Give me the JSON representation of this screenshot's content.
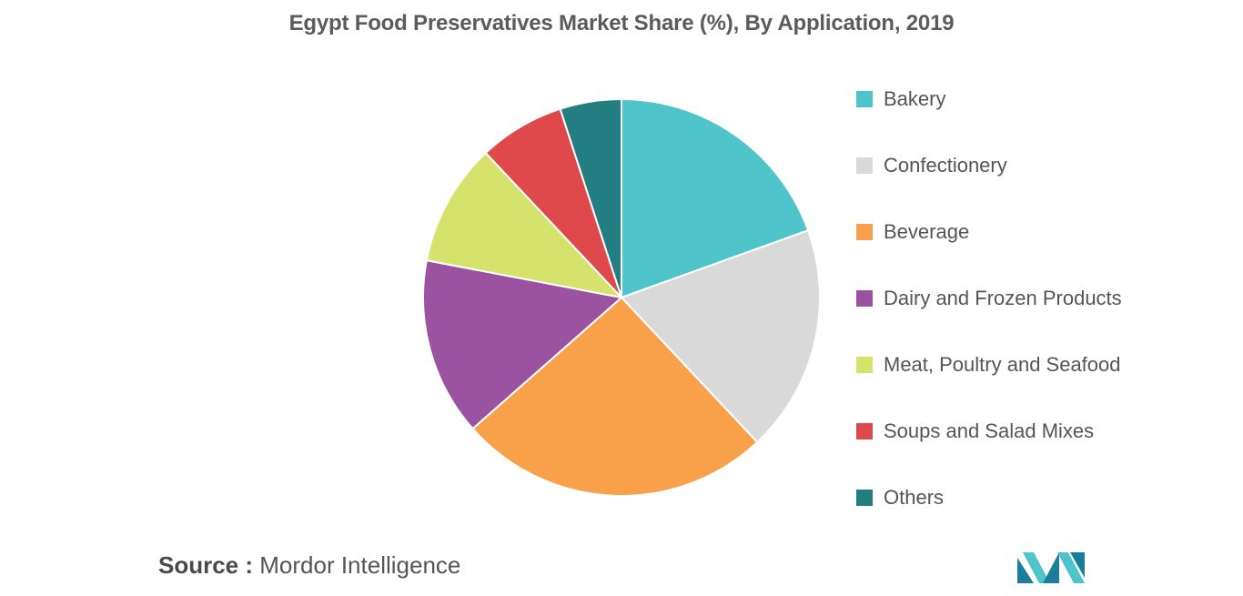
{
  "chart_data": {
    "type": "pie",
    "title": "Egypt Food Preservatives Market Share (%), By Application, 2019",
    "legend_position": "right",
    "slices": [
      {
        "label": "Bakery",
        "value": 19.5,
        "color": "#4fc4cb"
      },
      {
        "label": "Confectionery",
        "value": 18.5,
        "color": "#d9d9d9"
      },
      {
        "label": "Beverage",
        "value": 25.5,
        "color": "#f9a14a"
      },
      {
        "label": "Dairy and Frozen Products",
        "value": 14.5,
        "color": "#9b52a0"
      },
      {
        "label": "Meat, Poultry and Seafood",
        "value": 10,
        "color": "#d5e26b"
      },
      {
        "label": "Soups and Salad Mixes",
        "value": 7,
        "color": "#e0494b"
      },
      {
        "label": "Others",
        "value": 5,
        "color": "#227e80"
      }
    ]
  },
  "footer": {
    "source_prefix": "Source :",
    "source_text": " Mordor Intelligence"
  },
  "logo": {
    "icon": "mordor-intelligence-logo-icon",
    "colors": [
      "#1b7d9a",
      "#4fc4cb"
    ]
  }
}
